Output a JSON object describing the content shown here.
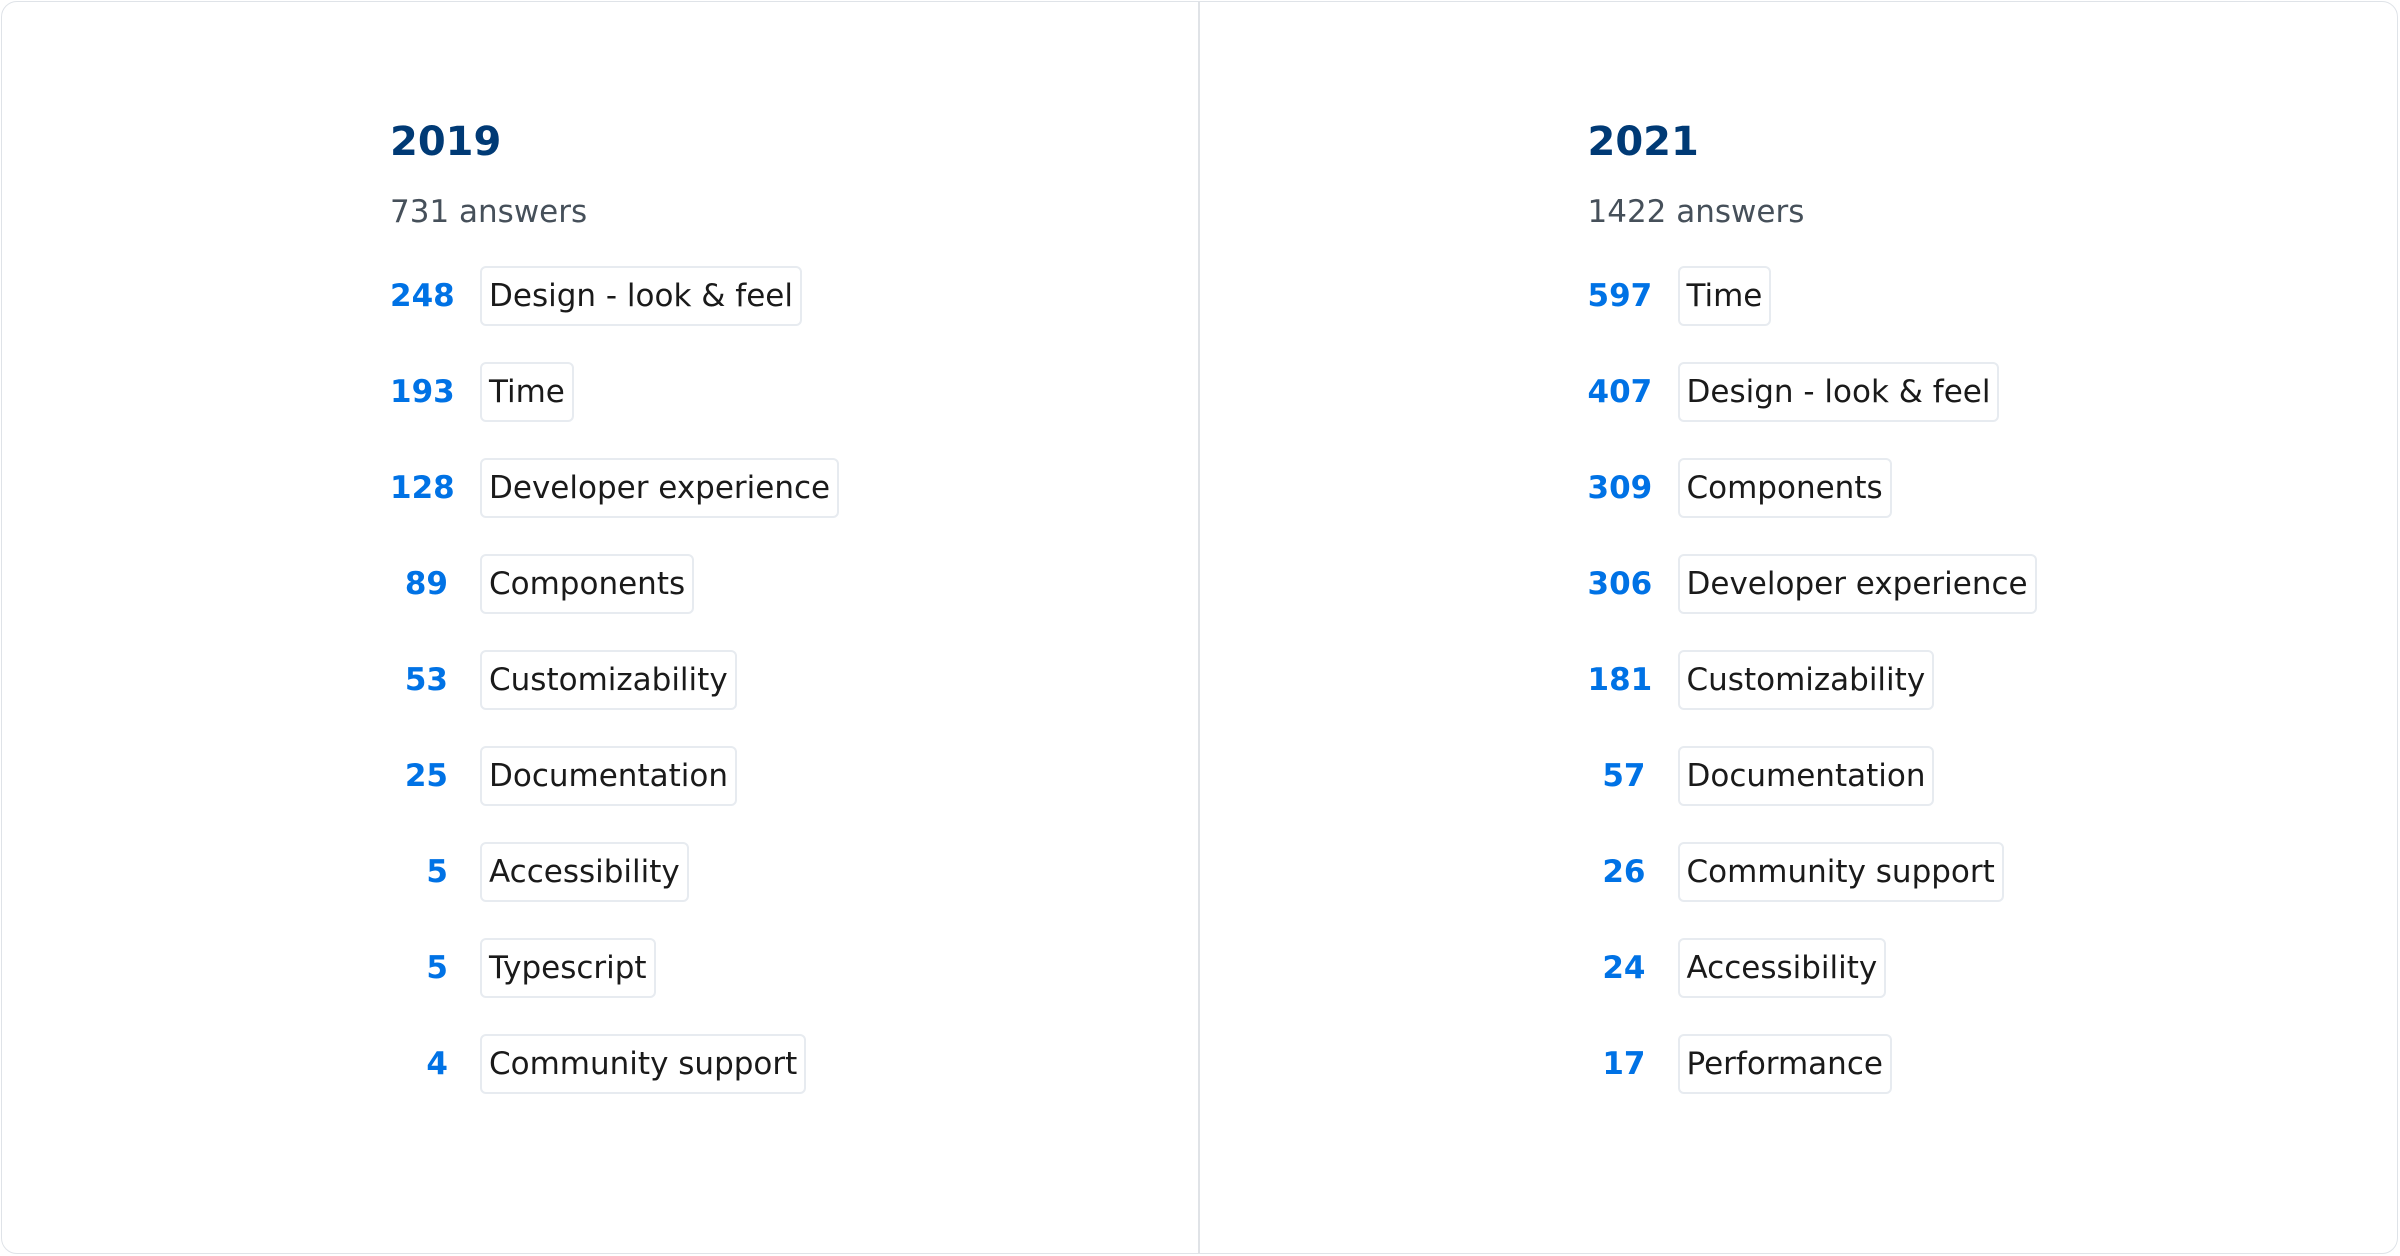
{
  "columns": [
    {
      "year": "2019",
      "answers": "731 answers",
      "items": [
        {
          "count": "248",
          "label": "Design - look & feel"
        },
        {
          "count": "193",
          "label": "Time"
        },
        {
          "count": "128",
          "label": "Developer experience"
        },
        {
          "count": "89",
          "label": "Components"
        },
        {
          "count": "53",
          "label": "Customizability"
        },
        {
          "count": "25",
          "label": "Documentation"
        },
        {
          "count": "5",
          "label": "Accessibility"
        },
        {
          "count": "5",
          "label": "Typescript"
        },
        {
          "count": "4",
          "label": "Community support"
        }
      ]
    },
    {
      "year": "2021",
      "answers": "1422 answers",
      "items": [
        {
          "count": "597",
          "label": "Time"
        },
        {
          "count": "407",
          "label": "Design - look & feel"
        },
        {
          "count": "309",
          "label": "Components"
        },
        {
          "count": "306",
          "label": "Developer experience"
        },
        {
          "count": "181",
          "label": "Customizability"
        },
        {
          "count": "57",
          "label": "Documentation"
        },
        {
          "count": "26",
          "label": "Community support"
        },
        {
          "count": "24",
          "label": "Accessibility"
        },
        {
          "count": "17",
          "label": "Performance"
        }
      ]
    }
  ],
  "colors": {
    "title": "#003a75",
    "count": "#0072e5",
    "subtitle": "#46505a",
    "border": "#e7ebf0"
  }
}
